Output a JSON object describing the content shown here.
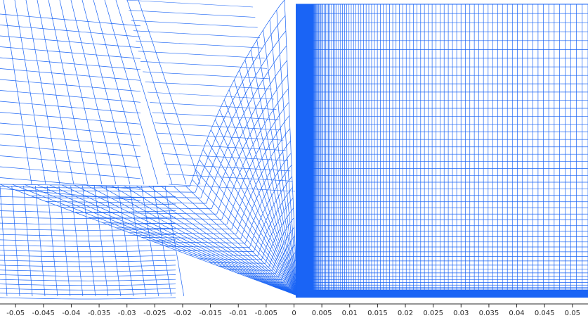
{
  "axis": {
    "ticks": [
      {
        "value": -0.05,
        "label": "-0.05"
      },
      {
        "value": -0.045,
        "label": "-0.045"
      },
      {
        "value": -0.04,
        "label": "-0.04"
      },
      {
        "value": -0.035,
        "label": "-0.035"
      },
      {
        "value": -0.03,
        "label": "-0.03"
      },
      {
        "value": -0.025,
        "label": "-0.025"
      },
      {
        "value": -0.02,
        "label": "-0.02"
      },
      {
        "value": -0.015,
        "label": "-0.015"
      },
      {
        "value": -0.01,
        "label": "-0.01"
      },
      {
        "value": -0.005,
        "label": "-0.005"
      },
      {
        "value": 0,
        "label": "0"
      },
      {
        "value": 0.005,
        "label": "0.005"
      },
      {
        "value": 0.01,
        "label": "0.01"
      },
      {
        "value": 0.015,
        "label": "0.015"
      },
      {
        "value": 0.02,
        "label": "0.02"
      },
      {
        "value": 0.025,
        "label": "0.025"
      },
      {
        "value": 0.03,
        "label": "0.03"
      },
      {
        "value": 0.035,
        "label": "0.035"
      },
      {
        "value": 0.04,
        "label": "0.04"
      },
      {
        "value": 0.045,
        "label": "0.045"
      },
      {
        "value": 0.05,
        "label": "0.05"
      }
    ],
    "range": [
      -0.0528,
      0.0528
    ]
  },
  "colors": {
    "mesh": "#1a64f5",
    "axis": "#2a2a2a",
    "background": "#ffffff"
  }
}
